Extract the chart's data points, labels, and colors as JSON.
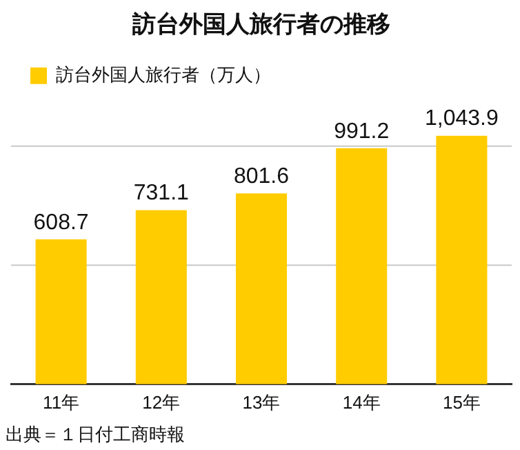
{
  "chart_data": {
    "type": "bar",
    "title": "訪台外国人旅行者の推移",
    "categories": [
      "11年",
      "12年",
      "13年",
      "14年",
      "15年"
    ],
    "series": [
      {
        "name": "訪台外国人旅行者（万人）",
        "color": "#ffcc00",
        "values": [
          608.7,
          731.1,
          801.6,
          991.2,
          1043.9
        ],
        "value_labels": [
          "608.7",
          "731.1",
          "801.6",
          "991.2",
          "1,043.9"
        ]
      }
    ],
    "ref_lines": [
      {
        "axis": "y",
        "value": 500,
        "color": "#c8c8c8"
      },
      {
        "axis": "y",
        "value": 1000,
        "color": "#c8c8c8"
      }
    ],
    "legend": "top left",
    "tick_labels": "x",
    "annotations": [
      "出典＝１日付工商時報"
    ]
  }
}
